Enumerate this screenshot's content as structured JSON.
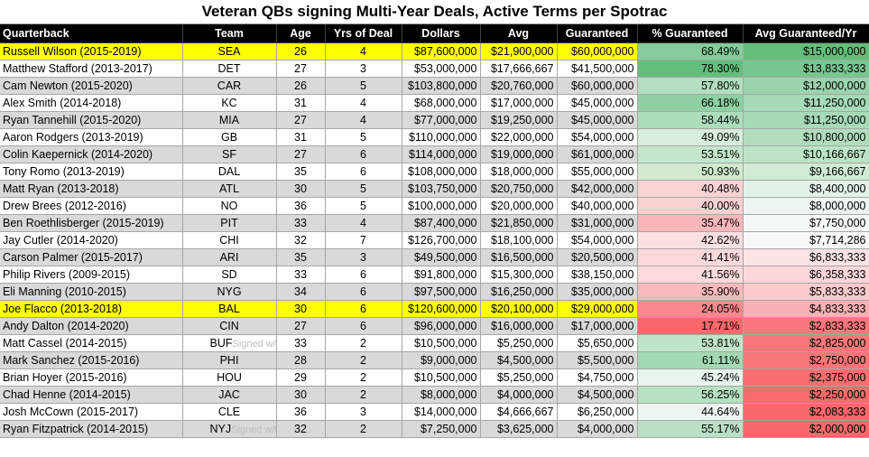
{
  "title": "Veteran QBs signing Multi-Year Deals, Active Terms per Spotrac",
  "headers": [
    "Quarterback",
    "Team",
    "Age",
    "Yrs of Deal",
    "Dollars",
    "Avg",
    "Guaranteed",
    "% Guaranteed",
    "Avg Guaranteed/Yr"
  ],
  "rows": [
    {
      "qb": "Russell Wilson (2015-2019)",
      "team": "SEA",
      "note": "",
      "age": "26",
      "yrs": "4",
      "dollars": "$87,600,000",
      "avg": "$21,900,000",
      "gtd": "$60,000,000",
      "pct": "68.49%",
      "avggtd": "$15,000,000",
      "highlight": true,
      "pct_color": "#85cc9c",
      "avg_color": "#63be7b"
    },
    {
      "qb": "Matthew Stafford (2013-2017)",
      "team": "DET",
      "note": "",
      "age": "27",
      "yrs": "3",
      "dollars": "$53,000,000",
      "avg": "$17,666,667",
      "gtd": "$41,500,000",
      "pct": "78.30%",
      "avggtd": "$13,833,333",
      "highlight": false,
      "pct_color": "#63be7b",
      "avg_color": "#78c690"
    },
    {
      "qb": "Cam Newton (2015-2020)",
      "team": "CAR",
      "note": "",
      "age": "26",
      "yrs": "5",
      "dollars": "$103,800,000",
      "avg": "$20,760,000",
      "gtd": "$60,000,000",
      "pct": "57.80%",
      "avggtd": "$12,000,000",
      "highlight": false,
      "pct_color": "#b1dfbf",
      "avg_color": "#9ad4ac"
    },
    {
      "qb": "Alex Smith (2014-2018)",
      "team": "KC",
      "note": "",
      "age": "31",
      "yrs": "4",
      "dollars": "$68,000,000",
      "avg": "$17,000,000",
      "gtd": "$45,000,000",
      "pct": "66.18%",
      "avggtd": "$11,250,000",
      "highlight": false,
      "pct_color": "#8ed0a2",
      "avg_color": "#a7dab7"
    },
    {
      "qb": "Ryan Tannehill (2015-2020)",
      "team": "MIA",
      "note": "",
      "age": "27",
      "yrs": "4",
      "dollars": "$77,000,000",
      "avg": "$19,250,000",
      "gtd": "$45,000,000",
      "pct": "58.44%",
      "avggtd": "$11,250,000",
      "highlight": false,
      "pct_color": "#addebb",
      "avg_color": "#a7dab7"
    },
    {
      "qb": "Aaron Rodgers (2013-2019)",
      "team": "GB",
      "note": "",
      "age": "31",
      "yrs": "5",
      "dollars": "$110,000,000",
      "avg": "$22,000,000",
      "gtd": "$54,000,000",
      "pct": "49.09%",
      "avggtd": "$10,800,000",
      "highlight": false,
      "pct_color": "#d7eedc",
      "avg_color": "#b0debd"
    },
    {
      "qb": "Colin Kaepernick (2014-2020)",
      "team": "SF",
      "note": "",
      "age": "27",
      "yrs": "6",
      "dollars": "$114,000,000",
      "avg": "$19,000,000",
      "gtd": "$61,000,000",
      "pct": "53.51%",
      "avggtd": "$10,166,667",
      "highlight": false,
      "pct_color": "#c3e6cc",
      "avg_color": "#bce3c6"
    },
    {
      "qb": "Tony Romo (2013-2019)",
      "team": "DAL",
      "note": "",
      "age": "35",
      "yrs": "6",
      "dollars": "$108,000,000",
      "avg": "$18,000,000",
      "gtd": "$55,000,000",
      "pct": "50.93%",
      "avggtd": "$9,166,667",
      "highlight": false,
      "pct_color": "#cfeacd",
      "avg_color": "#d0ebd6"
    },
    {
      "qb": "Matt Ryan (2013-2018)",
      "team": "ATL",
      "note": "",
      "age": "30",
      "yrs": "5",
      "dollars": "$103,750,000",
      "avg": "$20,750,000",
      "gtd": "$42,000,000",
      "pct": "40.48%",
      "avggtd": "$8,400,000",
      "highlight": false,
      "pct_color": "#fbd3d5",
      "avg_color": "#e2f2e6"
    },
    {
      "qb": "Drew Brees (2012-2016)",
      "team": "NO",
      "note": "",
      "age": "36",
      "yrs": "5",
      "dollars": "$100,000,000",
      "avg": "$20,000,000",
      "gtd": "$40,000,000",
      "pct": "40.00%",
      "avggtd": "$8,000,000",
      "highlight": false,
      "pct_color": "#fbd0d2",
      "avg_color": "#ecf6ef"
    },
    {
      "qb": "Ben Roethlisberger (2015-2019)",
      "team": "PIT",
      "note": "",
      "age": "33",
      "yrs": "4",
      "dollars": "$87,400,000",
      "avg": "$21,850,000",
      "gtd": "$31,000,000",
      "pct": "35.47%",
      "avggtd": "$7,750,000",
      "highlight": false,
      "pct_color": "#f9b7ba",
      "avg_color": "#f3f9f5"
    },
    {
      "qb": "Jay Cutler (2014-2020)",
      "team": "CHI",
      "note": "",
      "age": "32",
      "yrs": "7",
      "dollars": "$126,700,000",
      "avg": "$18,100,000",
      "gtd": "$54,000,000",
      "pct": "42.62%",
      "avggtd": "$7,714,286",
      "highlight": false,
      "pct_color": "#fcdfe1",
      "avg_color": "#f5faf6"
    },
    {
      "qb": "Carson Palmer (2015-2017)",
      "team": "ARI",
      "note": "",
      "age": "35",
      "yrs": "3",
      "dollars": "$49,500,000",
      "avg": "$16,500,000",
      "gtd": "$20,500,000",
      "pct": "41.41%",
      "avggtd": "$6,833,333",
      "highlight": false,
      "pct_color": "#fbd9db",
      "avg_color": "#fce3e4"
    },
    {
      "qb": "Philip Rivers (2009-2015)",
      "team": "SD",
      "note": "",
      "age": "33",
      "yrs": "6",
      "dollars": "$91,800,000",
      "avg": "$15,300,000",
      "gtd": "$38,150,000",
      "pct": "41.56%",
      "avggtd": "$6,358,333",
      "highlight": false,
      "pct_color": "#fbdadb",
      "avg_color": "#fbd7d9"
    },
    {
      "qb": "Eli Manning (2010-2015)",
      "team": "NYG",
      "note": "",
      "age": "34",
      "yrs": "6",
      "dollars": "$97,500,000",
      "avg": "$16,250,000",
      "gtd": "$35,000,000",
      "pct": "35.90%",
      "avggtd": "$5,833,333",
      "highlight": false,
      "pct_color": "#f9babd",
      "avg_color": "#fbcbcd"
    },
    {
      "qb": "Joe Flacco (2013-2018)",
      "team": "BAL",
      "note": "",
      "age": "30",
      "yrs": "6",
      "dollars": "$120,600,000",
      "avg": "$20,100,000",
      "gtd": "$29,000,000",
      "pct": "24.05%",
      "avggtd": "$4,833,333",
      "highlight": true,
      "pct_color": "#f8888b",
      "avg_color": "#f9b1b3"
    },
    {
      "qb": "Andy Dalton (2014-2020)",
      "team": "CIN",
      "note": "",
      "age": "27",
      "yrs": "6",
      "dollars": "$96,000,000",
      "avg": "$16,000,000",
      "gtd": "$17,000,000",
      "pct": "17.71%",
      "avggtd": "$2,833,333",
      "highlight": false,
      "pct_color": "#f8696b",
      "avg_color": "#f8777a"
    },
    {
      "qb": "Matt Cassel (2014-2015)",
      "team": "BUF",
      "note": "Signed w/MIN",
      "age": "33",
      "yrs": "2",
      "dollars": "$10,500,000",
      "avg": "$5,250,000",
      "gtd": "$5,650,000",
      "pct": "53.81%",
      "avggtd": "$2,825,000",
      "highlight": false,
      "pct_color": "#c0e4c9",
      "avg_color": "#f8777a"
    },
    {
      "qb": "Mark Sanchez (2015-2016)",
      "team": "PHI",
      "note": "",
      "age": "28",
      "yrs": "2",
      "dollars": "$9,000,000",
      "avg": "$4,500,000",
      "gtd": "$5,500,000",
      "pct": "61.11%",
      "avggtd": "$2,750,000",
      "highlight": false,
      "pct_color": "#a2d9b2",
      "avg_color": "#f87578"
    },
    {
      "qb": "Brian Hoyer (2015-2016)",
      "team": "HOU",
      "note": "",
      "age": "29",
      "yrs": "2",
      "dollars": "$10,500,000",
      "avg": "$5,250,000",
      "gtd": "$4,750,000",
      "pct": "45.24%",
      "avggtd": "$2,375,000",
      "highlight": false,
      "pct_color": "#e9f5ec",
      "avg_color": "#f86e71"
    },
    {
      "qb": "Chad Henne (2014-2015)",
      "team": "JAC",
      "note": "",
      "age": "30",
      "yrs": "2",
      "dollars": "$8,000,000",
      "avg": "$4,000,000",
      "gtd": "$4,500,000",
      "pct": "56.25%",
      "avggtd": "$2,250,000",
      "highlight": false,
      "pct_color": "#b6e1c2",
      "avg_color": "#f86b6e"
    },
    {
      "qb": "Josh McCown (2015-2017)",
      "team": "CLE",
      "note": "",
      "age": "36",
      "yrs": "3",
      "dollars": "$14,000,000",
      "avg": "$4,666,667",
      "gtd": "$6,250,000",
      "pct": "44.64%",
      "avggtd": "$2,083,333",
      "highlight": false,
      "pct_color": "#ecf6ef",
      "avg_color": "#f8696b"
    },
    {
      "qb": "Ryan Fitzpatrick (2014-2015)",
      "team": "NYJ",
      "note": "Signed w/HOU",
      "age": "32",
      "yrs": "2",
      "dollars": "$7,250,000",
      "avg": "$3,625,000",
      "gtd": "$4,000,000",
      "pct": "55.17%",
      "avggtd": "$2,000,000",
      "highlight": false,
      "pct_color": "#badfc6",
      "avg_color": "#f8696b"
    }
  ]
}
